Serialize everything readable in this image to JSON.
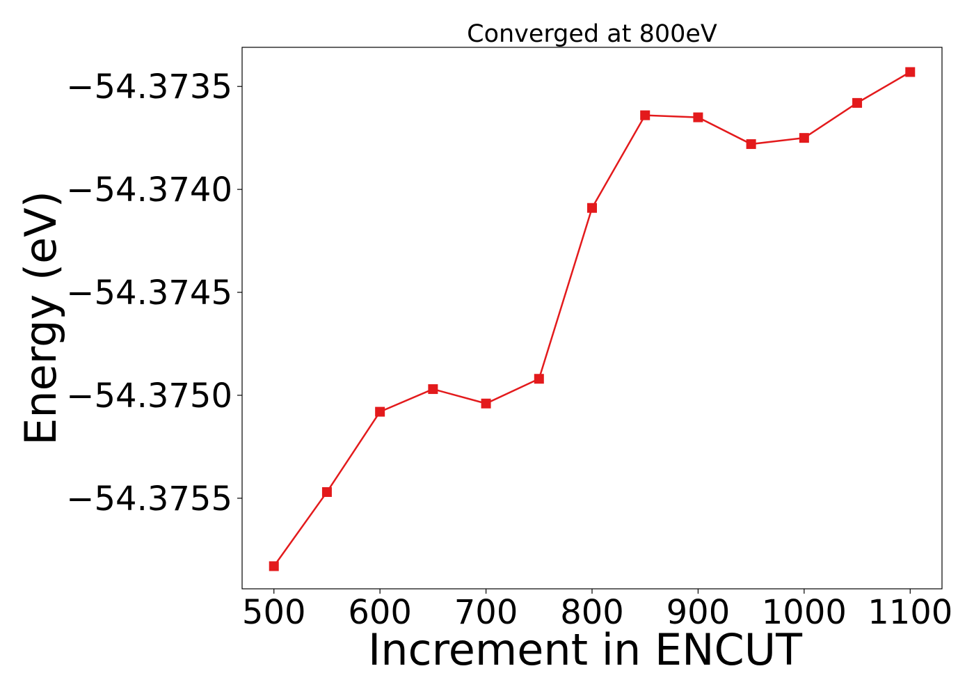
{
  "chart_data": {
    "type": "line",
    "title": "Converged at 800eV",
    "xlabel": "Increment in ENCUT",
    "ylabel": "Energy (eV)",
    "x": [
      500,
      550,
      600,
      650,
      700,
      750,
      800,
      850,
      900,
      950,
      1000,
      1050,
      1100
    ],
    "series": [
      {
        "values": [
          -54.37583,
          -54.37547,
          -54.37508,
          -54.37497,
          -54.37504,
          -54.37492,
          -54.37409,
          -54.37364,
          -54.37365,
          -54.37378,
          -54.37375,
          -54.37358,
          -54.37343
        ],
        "color": "#e31a1c",
        "marker": "square"
      }
    ],
    "xticks": [
      500,
      600,
      700,
      800,
      900,
      1000,
      1100
    ],
    "yticks": [
      -54.3755,
      -54.375,
      -54.3745,
      -54.374,
      -54.3735
    ],
    "xtick_labels": [
      "500",
      "600",
      "700",
      "800",
      "900",
      "1000",
      "1100"
    ],
    "ytick_labels": [
      "−54.3755",
      "−54.3750",
      "−54.3745",
      "−54.3740",
      "−54.3735"
    ],
    "xlim": [
      470,
      1130
    ],
    "ylim": [
      -54.37594,
      -54.37331
    ],
    "grid": false,
    "legend": false
  }
}
